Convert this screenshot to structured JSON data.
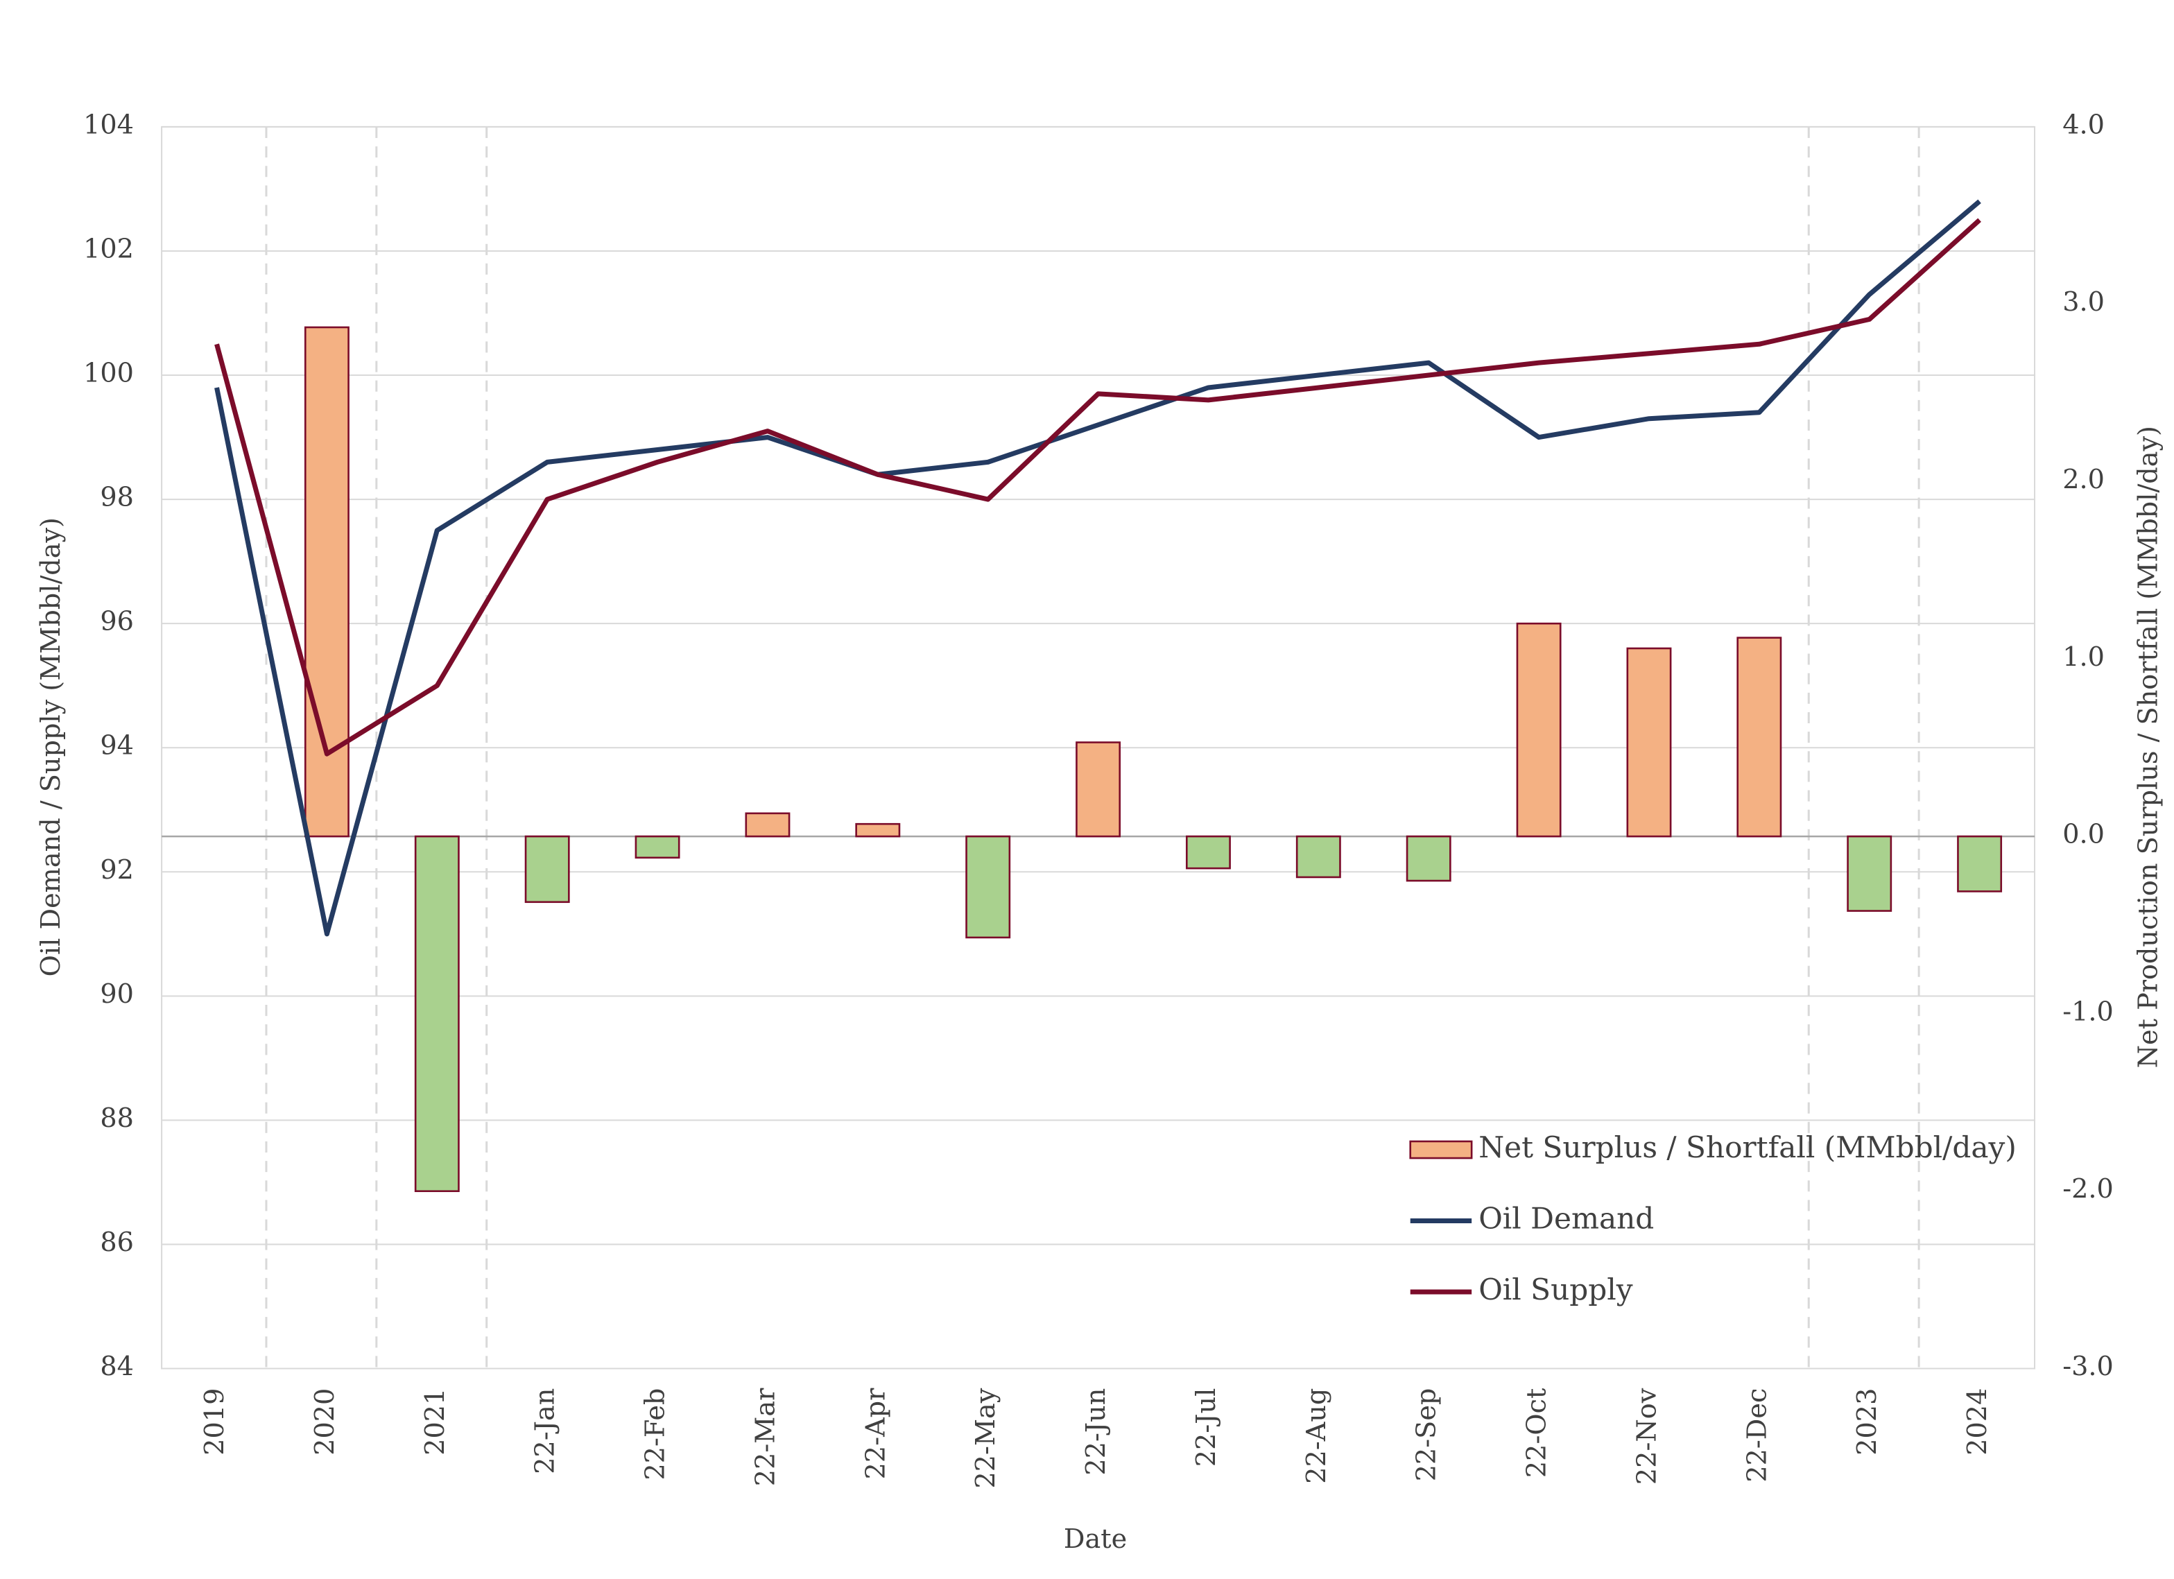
{
  "chart_data": {
    "type": "combo",
    "x_label": "Date",
    "y_label": "Oil Demand / Supply (MMbbl/day)",
    "y2_label": "Net Production Surplus / Shortfall (MMbbl/day)",
    "categories": [
      "2019",
      "2020",
      "2021",
      "22-Jan",
      "22-Feb",
      "22-Mar",
      "22-Apr",
      "22-May",
      "22-Jun",
      "22-Jul",
      "22-Aug",
      "22-Sep",
      "22-Oct",
      "22-Nov",
      "22-Dec",
      "2023",
      "2024"
    ],
    "ylim": [
      84,
      104
    ],
    "yticks": [
      84,
      86,
      88,
      90,
      92,
      94,
      96,
      98,
      100,
      102,
      104
    ],
    "y2lim": [
      -3,
      4
    ],
    "y2ticks": [
      {
        "value": -3,
        "label": "-3.0"
      },
      {
        "value": -2,
        "label": "-2.0"
      },
      {
        "value": -1,
        "label": "-1.0"
      },
      {
        "value": 0,
        "label": "0.0"
      },
      {
        "value": 1,
        "label": "1.0"
      },
      {
        "value": 2,
        "label": "2.0"
      },
      {
        "value": 3,
        "label": "3.0"
      },
      {
        "value": 4,
        "label": "4.0"
      }
    ],
    "grid": true,
    "legend": "bottom-right",
    "series": [
      {
        "name": "Net Surplus / Shortfall (MMbbl/day)",
        "type": "bar",
        "axis": "y2",
        "color": "#f4b183",
        "negative_color": "#a9d18e",
        "edge_color": "#7b0c2a",
        "values": [
          null,
          2.87,
          -2.0,
          -0.37,
          -0.12,
          0.13,
          0.07,
          -0.57,
          0.53,
          -0.18,
          -0.23,
          -0.25,
          1.2,
          1.06,
          1.12,
          -0.42,
          -0.31
        ]
      },
      {
        "name": "Oil Demand",
        "type": "line",
        "color": "#243b62",
        "values": [
          99.8,
          91.0,
          97.5,
          98.6,
          98.8,
          99.0,
          98.4,
          98.6,
          99.2,
          99.8,
          100.0,
          100.2,
          99.0,
          99.3,
          99.4,
          101.3,
          102.8
        ]
      },
      {
        "name": "Oil Supply",
        "type": "line",
        "color": "#7b0c2a",
        "values": [
          100.5,
          93.9,
          95.0,
          98.0,
          98.6,
          99.1,
          98.4,
          98.0,
          99.7,
          99.6,
          99.8,
          100.0,
          100.2,
          100.35,
          100.5,
          100.9,
          102.5
        ]
      }
    ]
  }
}
